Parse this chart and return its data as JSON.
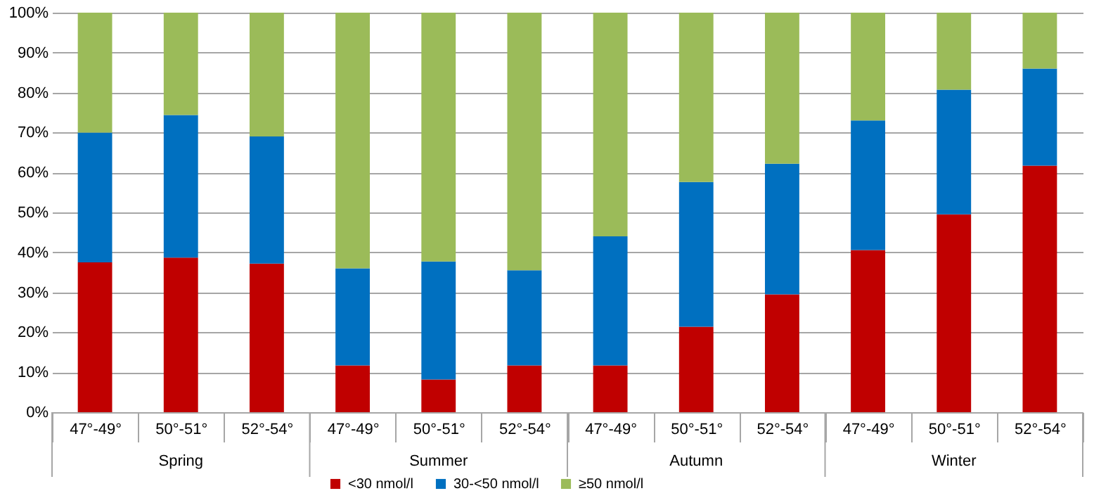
{
  "chart_data": {
    "type": "bar",
    "stacked": true,
    "categories": [
      "47°-49°",
      "50°-51°",
      "52°-54°",
      "47°-49°",
      "50°-51°",
      "52°-54°",
      "47°-49°",
      "50°-51°",
      "52°-54°",
      "47°-49°",
      "50°-51°",
      "52°-54°"
    ],
    "annotations": [
      "Spring",
      "Summer",
      "Autumn",
      "Winter"
    ],
    "series": [
      {
        "name": "<30 nmol/l",
        "color": "#c00000",
        "values": [
          37.5,
          38.7,
          37.2,
          11.7,
          8.2,
          11.7,
          11.7,
          21.4,
          29.5,
          40.6,
          49.5,
          61.7
        ]
      },
      {
        "name": "30-<50 nmol/l",
        "color": "#0070c0",
        "values": [
          32.5,
          35.7,
          31.8,
          24.3,
          29.5,
          23.8,
          32.3,
          36.2,
          32.7,
          32.4,
          31.2,
          24.3
        ]
      },
      {
        "name": "≥50 nmol/l",
        "color": "#9bbb59",
        "values": [
          30.0,
          25.6,
          31.0,
          64.0,
          62.3,
          64.5,
          56.0,
          42.4,
          37.8,
          27.0,
          19.3,
          14.0
        ]
      }
    ],
    "ylim": [
      0,
      100
    ],
    "yticks": [
      {
        "value": 0,
        "label": "0%"
      },
      {
        "value": 10,
        "label": "10%"
      },
      {
        "value": 20,
        "label": "20%"
      },
      {
        "value": 30,
        "label": "30%"
      },
      {
        "value": 40,
        "label": "40%"
      },
      {
        "value": 50,
        "label": "50%"
      },
      {
        "value": 60,
        "label": "60%"
      },
      {
        "value": 70,
        "label": "70%"
      },
      {
        "value": 80,
        "label": "80%"
      },
      {
        "value": 90,
        "label": "90%"
      },
      {
        "value": 100,
        "label": "100%"
      }
    ],
    "grid": "y",
    "legend": "bottom"
  }
}
